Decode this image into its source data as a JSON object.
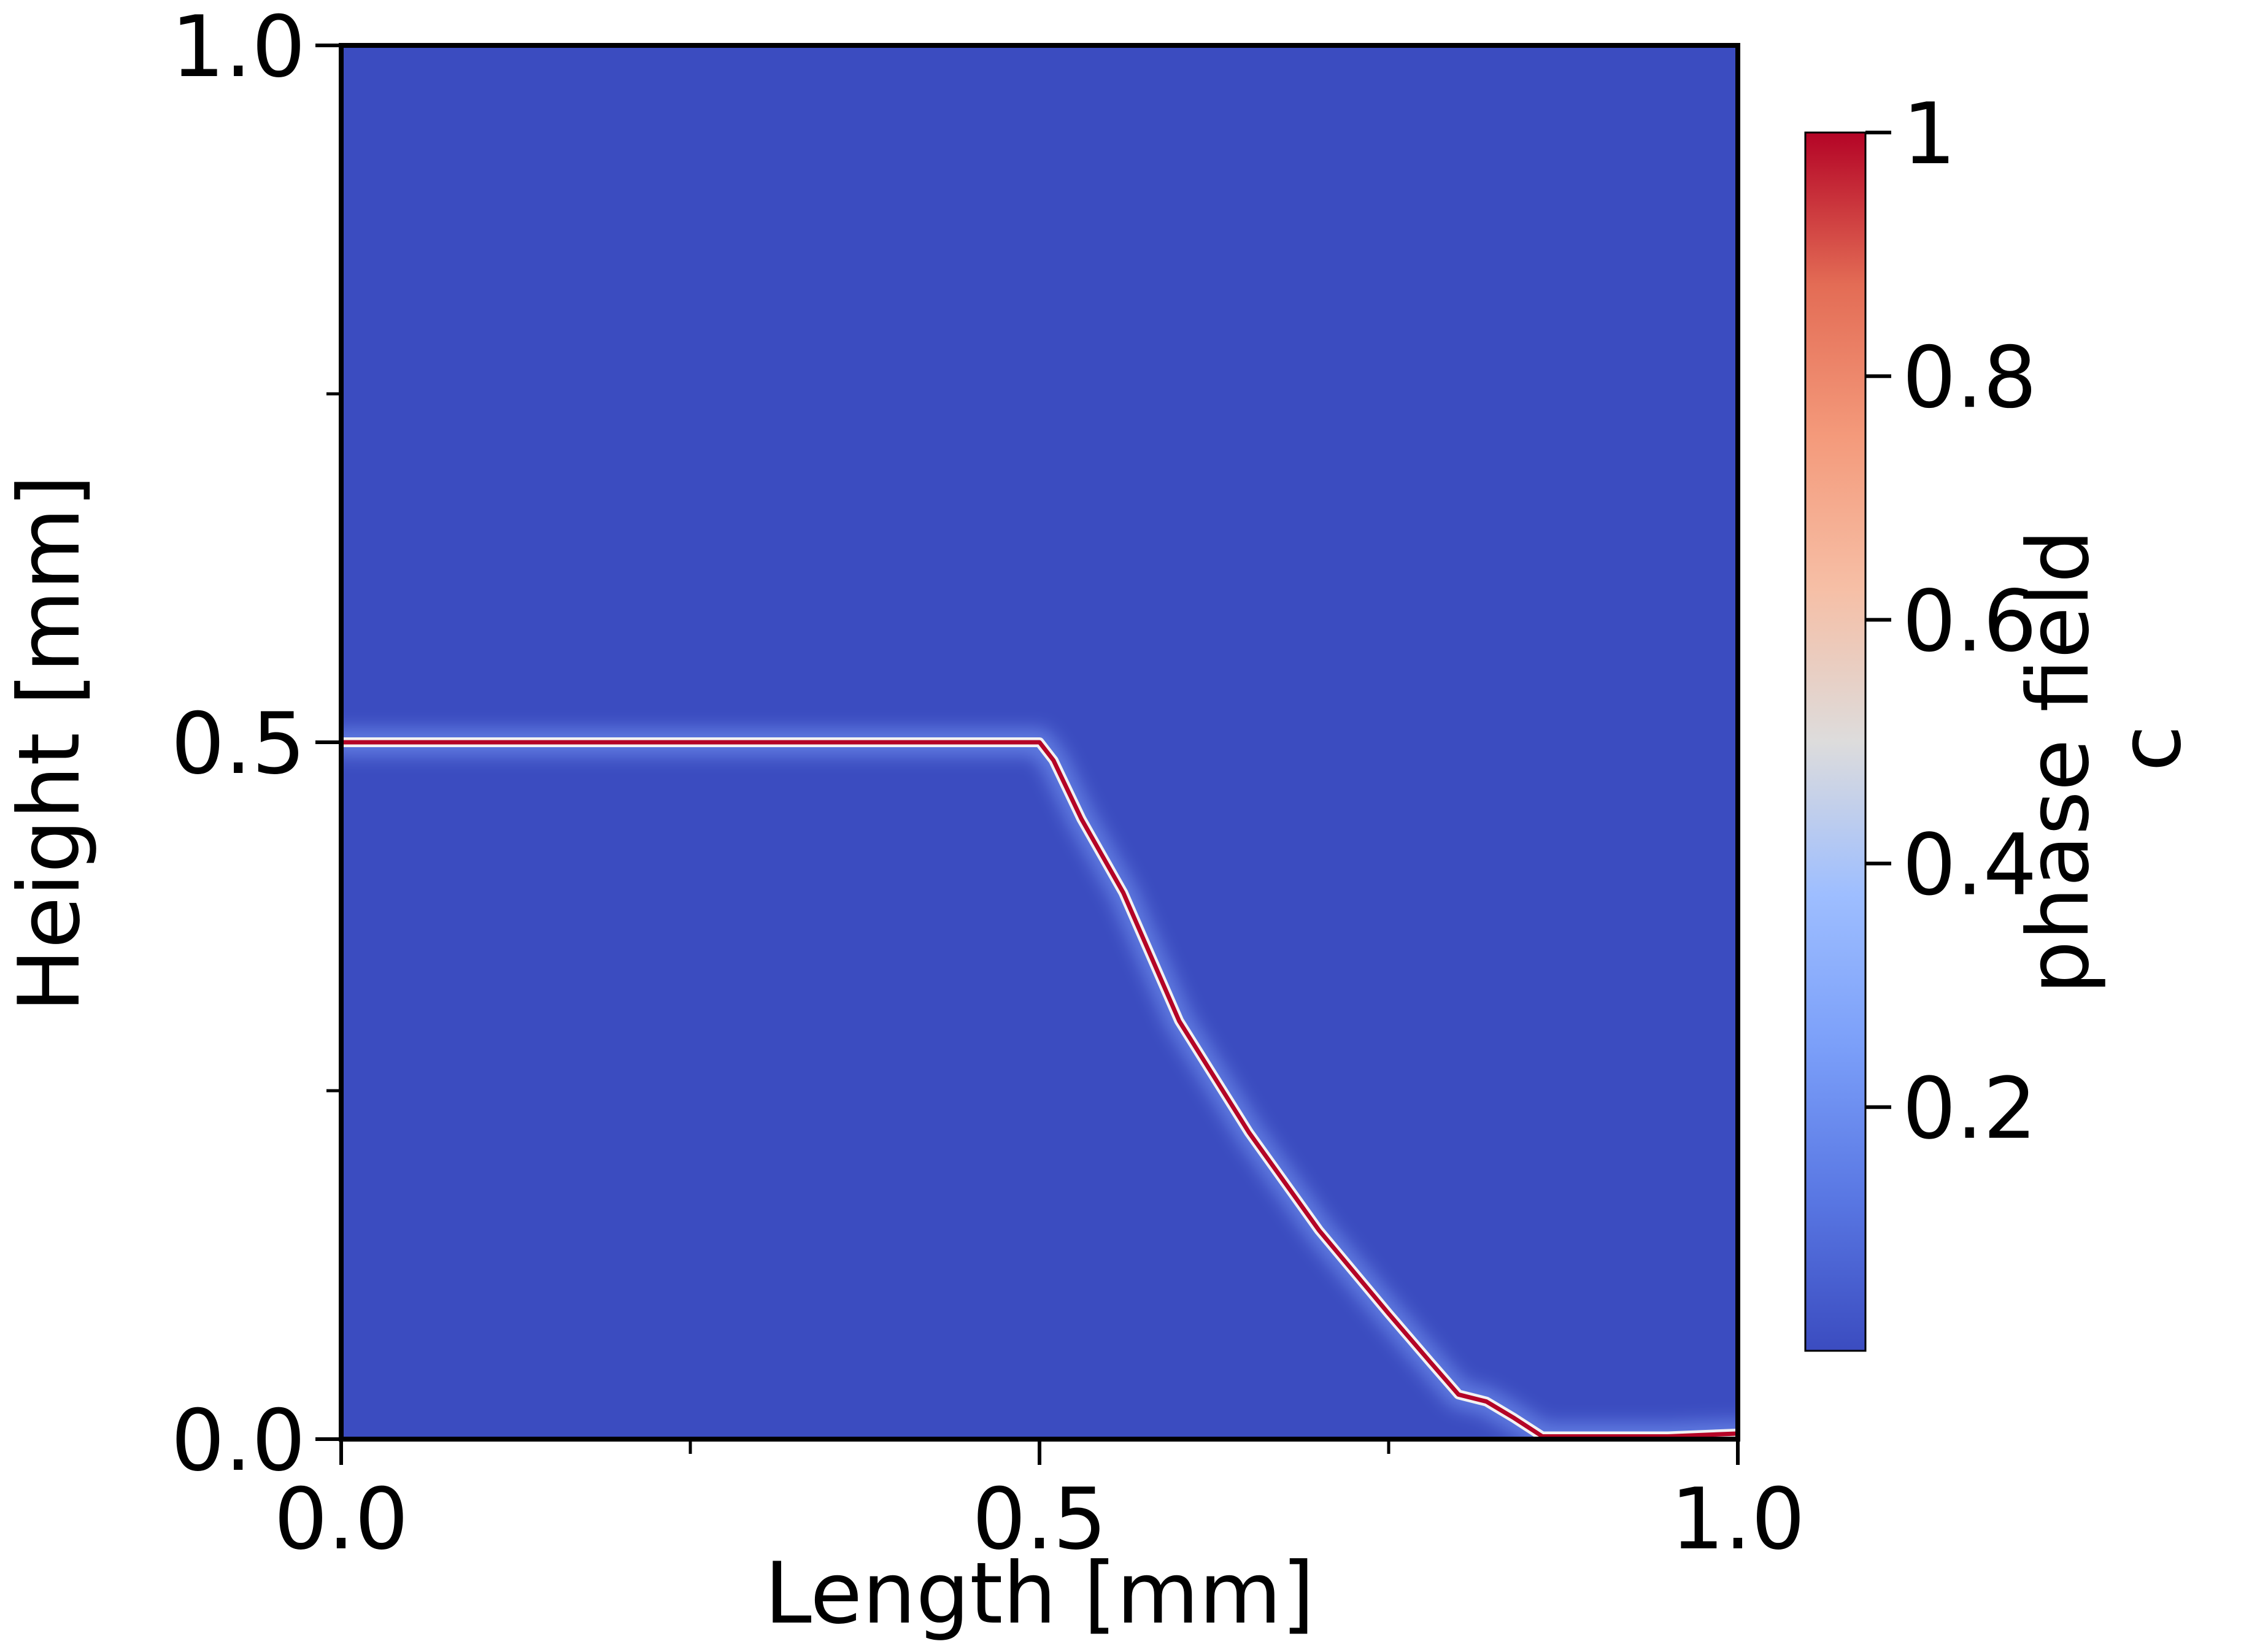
{
  "chart_data": {
    "type": "heatmap",
    "title": "",
    "xlabel": "Length [mm]",
    "ylabel": "Height [mm]",
    "xlim": [
      0.0,
      1.0
    ],
    "ylim": [
      0.0,
      1.0
    ],
    "x_major_ticks": [
      {
        "value": 0.0,
        "label": "0.0"
      },
      {
        "value": 0.5,
        "label": "0.5"
      },
      {
        "value": 1.0,
        "label": "1.0"
      }
    ],
    "x_minor_ticks": [
      0.25,
      0.75
    ],
    "y_major_ticks": [
      {
        "value": 0.0,
        "label": "0.0"
      },
      {
        "value": 0.5,
        "label": "0.5"
      },
      {
        "value": 1.0,
        "label": "1.0"
      }
    ],
    "y_minor_ticks": [
      0.25,
      0.75
    ],
    "grid": false,
    "colormap": "coolwarm",
    "field_name": "phase field c",
    "background_value": 0.0,
    "background_color": "#3b4cc0",
    "crack_color": "#b40426",
    "crack_path": [
      {
        "x": 0.0,
        "y": 0.5
      },
      {
        "x": 0.5,
        "y": 0.5
      },
      {
        "x": 0.51,
        "y": 0.487
      },
      {
        "x": 0.53,
        "y": 0.445
      },
      {
        "x": 0.56,
        "y": 0.392
      },
      {
        "x": 0.6,
        "y": 0.3
      },
      {
        "x": 0.65,
        "y": 0.22
      },
      {
        "x": 0.7,
        "y": 0.15
      },
      {
        "x": 0.75,
        "y": 0.09
      },
      {
        "x": 0.78,
        "y": 0.055
      },
      {
        "x": 0.8,
        "y": 0.032
      },
      {
        "x": 0.82,
        "y": 0.027
      },
      {
        "x": 0.84,
        "y": 0.015
      },
      {
        "x": 0.86,
        "y": 0.002
      },
      {
        "x": 0.95,
        "y": 0.002
      },
      {
        "x": 1.0,
        "y": 0.004
      }
    ],
    "colorbar": {
      "label": "phase field\nc",
      "range": [
        0.0,
        1.0
      ],
      "ticks": [
        {
          "value": 0.2,
          "label": "0.2"
        },
        {
          "value": 0.4,
          "label": "0.4"
        },
        {
          "value": 0.6,
          "label": "0.6"
        },
        {
          "value": 0.8,
          "label": "0.8"
        },
        {
          "value": 1.0,
          "label": "1"
        }
      ],
      "stops": [
        {
          "value": 0.0,
          "color": "#3b4cc0"
        },
        {
          "value": 0.125,
          "color": "#5977e3"
        },
        {
          "value": 0.25,
          "color": "#7b9ff9"
        },
        {
          "value": 0.375,
          "color": "#9ebeff"
        },
        {
          "value": 0.5,
          "color": "#dddcdc"
        },
        {
          "value": 0.625,
          "color": "#f6bfa6"
        },
        {
          "value": 0.75,
          "color": "#f49a7b"
        },
        {
          "value": 0.875,
          "color": "#e36c55"
        },
        {
          "value": 1.0,
          "color": "#b40426"
        }
      ]
    }
  }
}
